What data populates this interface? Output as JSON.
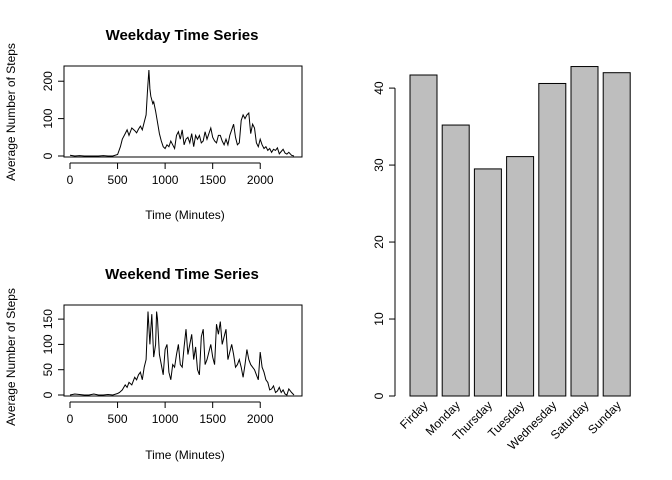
{
  "chart_data": [
    {
      "type": "line",
      "title": "Weekday Time Series",
      "xlabel": "Time (Minutes)",
      "ylabel": "Average Number of Steps",
      "xlim": [
        0,
        2355
      ],
      "ylim": [
        0,
        230
      ],
      "x_ticks": [
        0,
        500,
        1000,
        1500,
        2000
      ],
      "y_ticks": [
        0,
        100,
        200
      ],
      "series": [
        {
          "x": [
            0,
            50,
            100,
            150,
            200,
            250,
            300,
            350,
            400,
            450,
            500,
            530,
            550,
            580,
            600,
            620,
            650,
            680,
            700,
            720,
            740,
            760,
            780,
            800,
            815,
            830,
            840,
            850,
            860,
            870,
            880,
            900,
            920,
            940,
            960,
            980,
            1000,
            1020,
            1040,
            1060,
            1080,
            1100,
            1120,
            1140,
            1160,
            1180,
            1200,
            1220,
            1240,
            1260,
            1280,
            1300,
            1320,
            1340,
            1360,
            1380,
            1400,
            1420,
            1440,
            1460,
            1480,
            1500,
            1520,
            1540,
            1560,
            1580,
            1600,
            1620,
            1640,
            1660,
            1680,
            1700,
            1720,
            1740,
            1760,
            1780,
            1800,
            1820,
            1840,
            1860,
            1880,
            1900,
            1920,
            1940,
            1960,
            1980,
            2000,
            2020,
            2040,
            2060,
            2080,
            2100,
            2120,
            2140,
            2160,
            2180,
            2200,
            2220,
            2240,
            2260,
            2280,
            2300,
            2330,
            2355
          ],
          "y": [
            2,
            0,
            1,
            0,
            0,
            0,
            0,
            1,
            0,
            0,
            4,
            25,
            45,
            60,
            70,
            55,
            75,
            68,
            62,
            72,
            80,
            70,
            90,
            110,
            175,
            230,
            180,
            160,
            150,
            140,
            145,
            120,
            90,
            60,
            40,
            25,
            20,
            30,
            25,
            40,
            30,
            20,
            55,
            65,
            45,
            70,
            30,
            45,
            50,
            35,
            60,
            25,
            55,
            45,
            55,
            35,
            40,
            65,
            45,
            60,
            75,
            50,
            40,
            35,
            55,
            55,
            40,
            30,
            45,
            30,
            55,
            70,
            85,
            50,
            30,
            35,
            95,
            110,
            100,
            110,
            115,
            60,
            85,
            75,
            35,
            25,
            45,
            30,
            20,
            25,
            15,
            20,
            10,
            18,
            15,
            22,
            6,
            12,
            18,
            8,
            5,
            10,
            2,
            0
          ]
        }
      ]
    },
    {
      "type": "line",
      "title": "Weekend Time Series",
      "xlabel": "Time (Minutes)",
      "ylabel": "Average Number of Steps",
      "xlim": [
        0,
        2355
      ],
      "ylim": [
        0,
        170
      ],
      "x_ticks": [
        0,
        500,
        1000,
        1500,
        2000
      ],
      "y_ticks": [
        0,
        50,
        100,
        150
      ],
      "series": [
        {
          "x": [
            0,
            50,
            100,
            150,
            200,
            250,
            300,
            350,
            400,
            450,
            500,
            520,
            550,
            580,
            600,
            620,
            650,
            680,
            700,
            720,
            740,
            760,
            780,
            800,
            820,
            840,
            850,
            860,
            880,
            900,
            910,
            920,
            940,
            960,
            980,
            1000,
            1020,
            1040,
            1060,
            1080,
            1100,
            1120,
            1140,
            1160,
            1180,
            1200,
            1220,
            1240,
            1260,
            1280,
            1300,
            1320,
            1340,
            1360,
            1380,
            1400,
            1420,
            1440,
            1460,
            1480,
            1500,
            1520,
            1540,
            1560,
            1580,
            1600,
            1620,
            1640,
            1660,
            1680,
            1700,
            1720,
            1740,
            1760,
            1780,
            1800,
            1820,
            1840,
            1860,
            1880,
            1900,
            1920,
            1940,
            1960,
            1980,
            2000,
            2020,
            2040,
            2060,
            2080,
            2100,
            2120,
            2140,
            2160,
            2180,
            2200,
            2220,
            2240,
            2260,
            2280,
            2300,
            2330,
            2355
          ],
          "y": [
            0,
            2,
            1,
            0,
            0,
            2,
            0,
            0,
            1,
            0,
            3,
            5,
            10,
            20,
            15,
            25,
            20,
            35,
            30,
            40,
            45,
            30,
            55,
            70,
            165,
            100,
            130,
            160,
            75,
            100,
            165,
            150,
            80,
            60,
            40,
            90,
            100,
            45,
            30,
            60,
            55,
            80,
            100,
            60,
            55,
            95,
            130,
            80,
            100,
            120,
            70,
            95,
            50,
            40,
            115,
            130,
            60,
            70,
            85,
            100,
            75,
            60,
            140,
            120,
            145,
            100,
            115,
            130,
            70,
            85,
            100,
            80,
            55,
            60,
            70,
            55,
            35,
            60,
            90,
            70,
            60,
            55,
            50,
            40,
            30,
            85,
            55,
            45,
            30,
            25,
            10,
            12,
            18,
            5,
            8,
            15,
            5,
            10,
            2,
            0,
            12,
            5,
            0
          ]
        }
      ]
    },
    {
      "type": "bar",
      "title": "",
      "xlabel": "",
      "ylabel": "",
      "categories": [
        "Firday",
        "Monday",
        "Thursday",
        "Tuesday",
        "Wednesday",
        "Saturday",
        "Sunday"
      ],
      "values": [
        41.7,
        35.2,
        29.5,
        31.1,
        40.6,
        42.8,
        42.0
      ],
      "ylim": [
        0,
        43
      ],
      "y_ticks": [
        0,
        10,
        20,
        30,
        40
      ],
      "bar_color": "#bebebe"
    }
  ]
}
